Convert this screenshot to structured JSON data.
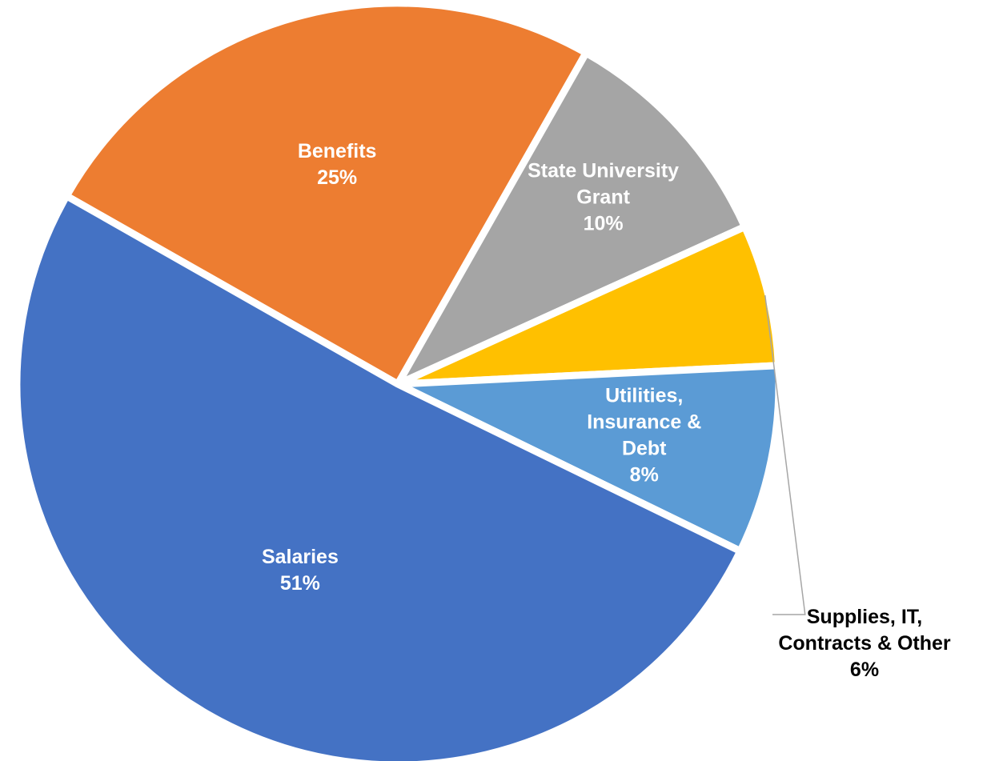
{
  "chart_data": {
    "type": "pie",
    "start_angle_deg": 150.4,
    "direction": "clockwise",
    "labels": [
      "Benefits",
      "State University Grant",
      "Supplies, IT, Contracts & Other",
      "Utilities, Insurance & Debt",
      "Salaries"
    ],
    "values": [
      25,
      10,
      6,
      8,
      51
    ],
    "value_labels": [
      "25%",
      "10%",
      "6%",
      "8%",
      "51%"
    ],
    "label_lines": [
      [
        "Benefits"
      ],
      [
        "State University",
        "Grant"
      ],
      [
        "Supplies, IT,",
        "Contracts & Other"
      ],
      [
        "Utilities,",
        "Insurance &",
        "Debt"
      ],
      [
        "Salaries"
      ]
    ],
    "colors": [
      "#ED7D31",
      "#A5A5A5",
      "#FFC000",
      "#5B9BD5",
      "#4472C4"
    ],
    "label_colors": [
      "#ffffff",
      "#ffffff",
      "#000000",
      "#ffffff",
      "#ffffff"
    ],
    "label_placement": [
      "inside",
      "inside",
      "outside",
      "inside",
      "inside"
    ],
    "legend": "none",
    "grid": false
  }
}
